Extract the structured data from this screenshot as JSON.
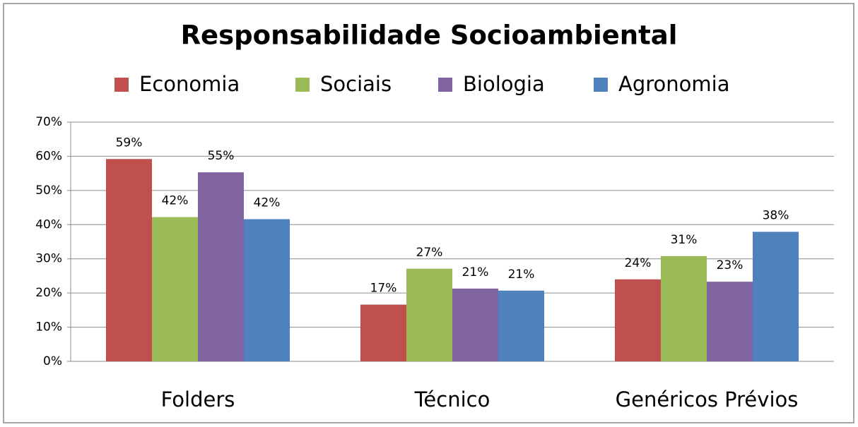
{
  "chart_data": {
    "type": "bar",
    "title": "Responsabilidade Socioambiental",
    "categories": [
      "Folders",
      "Técnico",
      "Genéricos Prévios"
    ],
    "series": [
      {
        "name": "Economia",
        "color": "#c0504d",
        "values": [
          59.2,
          16.6,
          24.0
        ],
        "value_labels": [
          "59%",
          "17%",
          "24%"
        ]
      },
      {
        "name": "Sociais",
        "color": "#9bbb59",
        "values": [
          42.2,
          27.1,
          30.8
        ],
        "value_labels": [
          "42%",
          "27%",
          "31%"
        ]
      },
      {
        "name": "Biologia",
        "color": "#8064a2",
        "values": [
          55.3,
          21.3,
          23.3
        ],
        "value_labels": [
          "55%",
          "21%",
          "23%"
        ]
      },
      {
        "name": "Agronomia",
        "color": "#4f81bd",
        "values": [
          41.6,
          20.7,
          37.9
        ],
        "value_labels": [
          "42%",
          "21%",
          "38%"
        ]
      }
    ],
    "ylim": [
      0,
      70
    ],
    "yticks": [
      {
        "value": 0,
        "label": "0%"
      },
      {
        "value": 10,
        "label": "10%"
      },
      {
        "value": 20,
        "label": "20%"
      },
      {
        "value": 30,
        "label": "30%"
      },
      {
        "value": 40,
        "label": "40%"
      },
      {
        "value": 50,
        "label": "50%"
      },
      {
        "value": 60,
        "label": "60%"
      },
      {
        "value": 70,
        "label": "70%"
      }
    ],
    "grid": true,
    "legend": "top"
  }
}
